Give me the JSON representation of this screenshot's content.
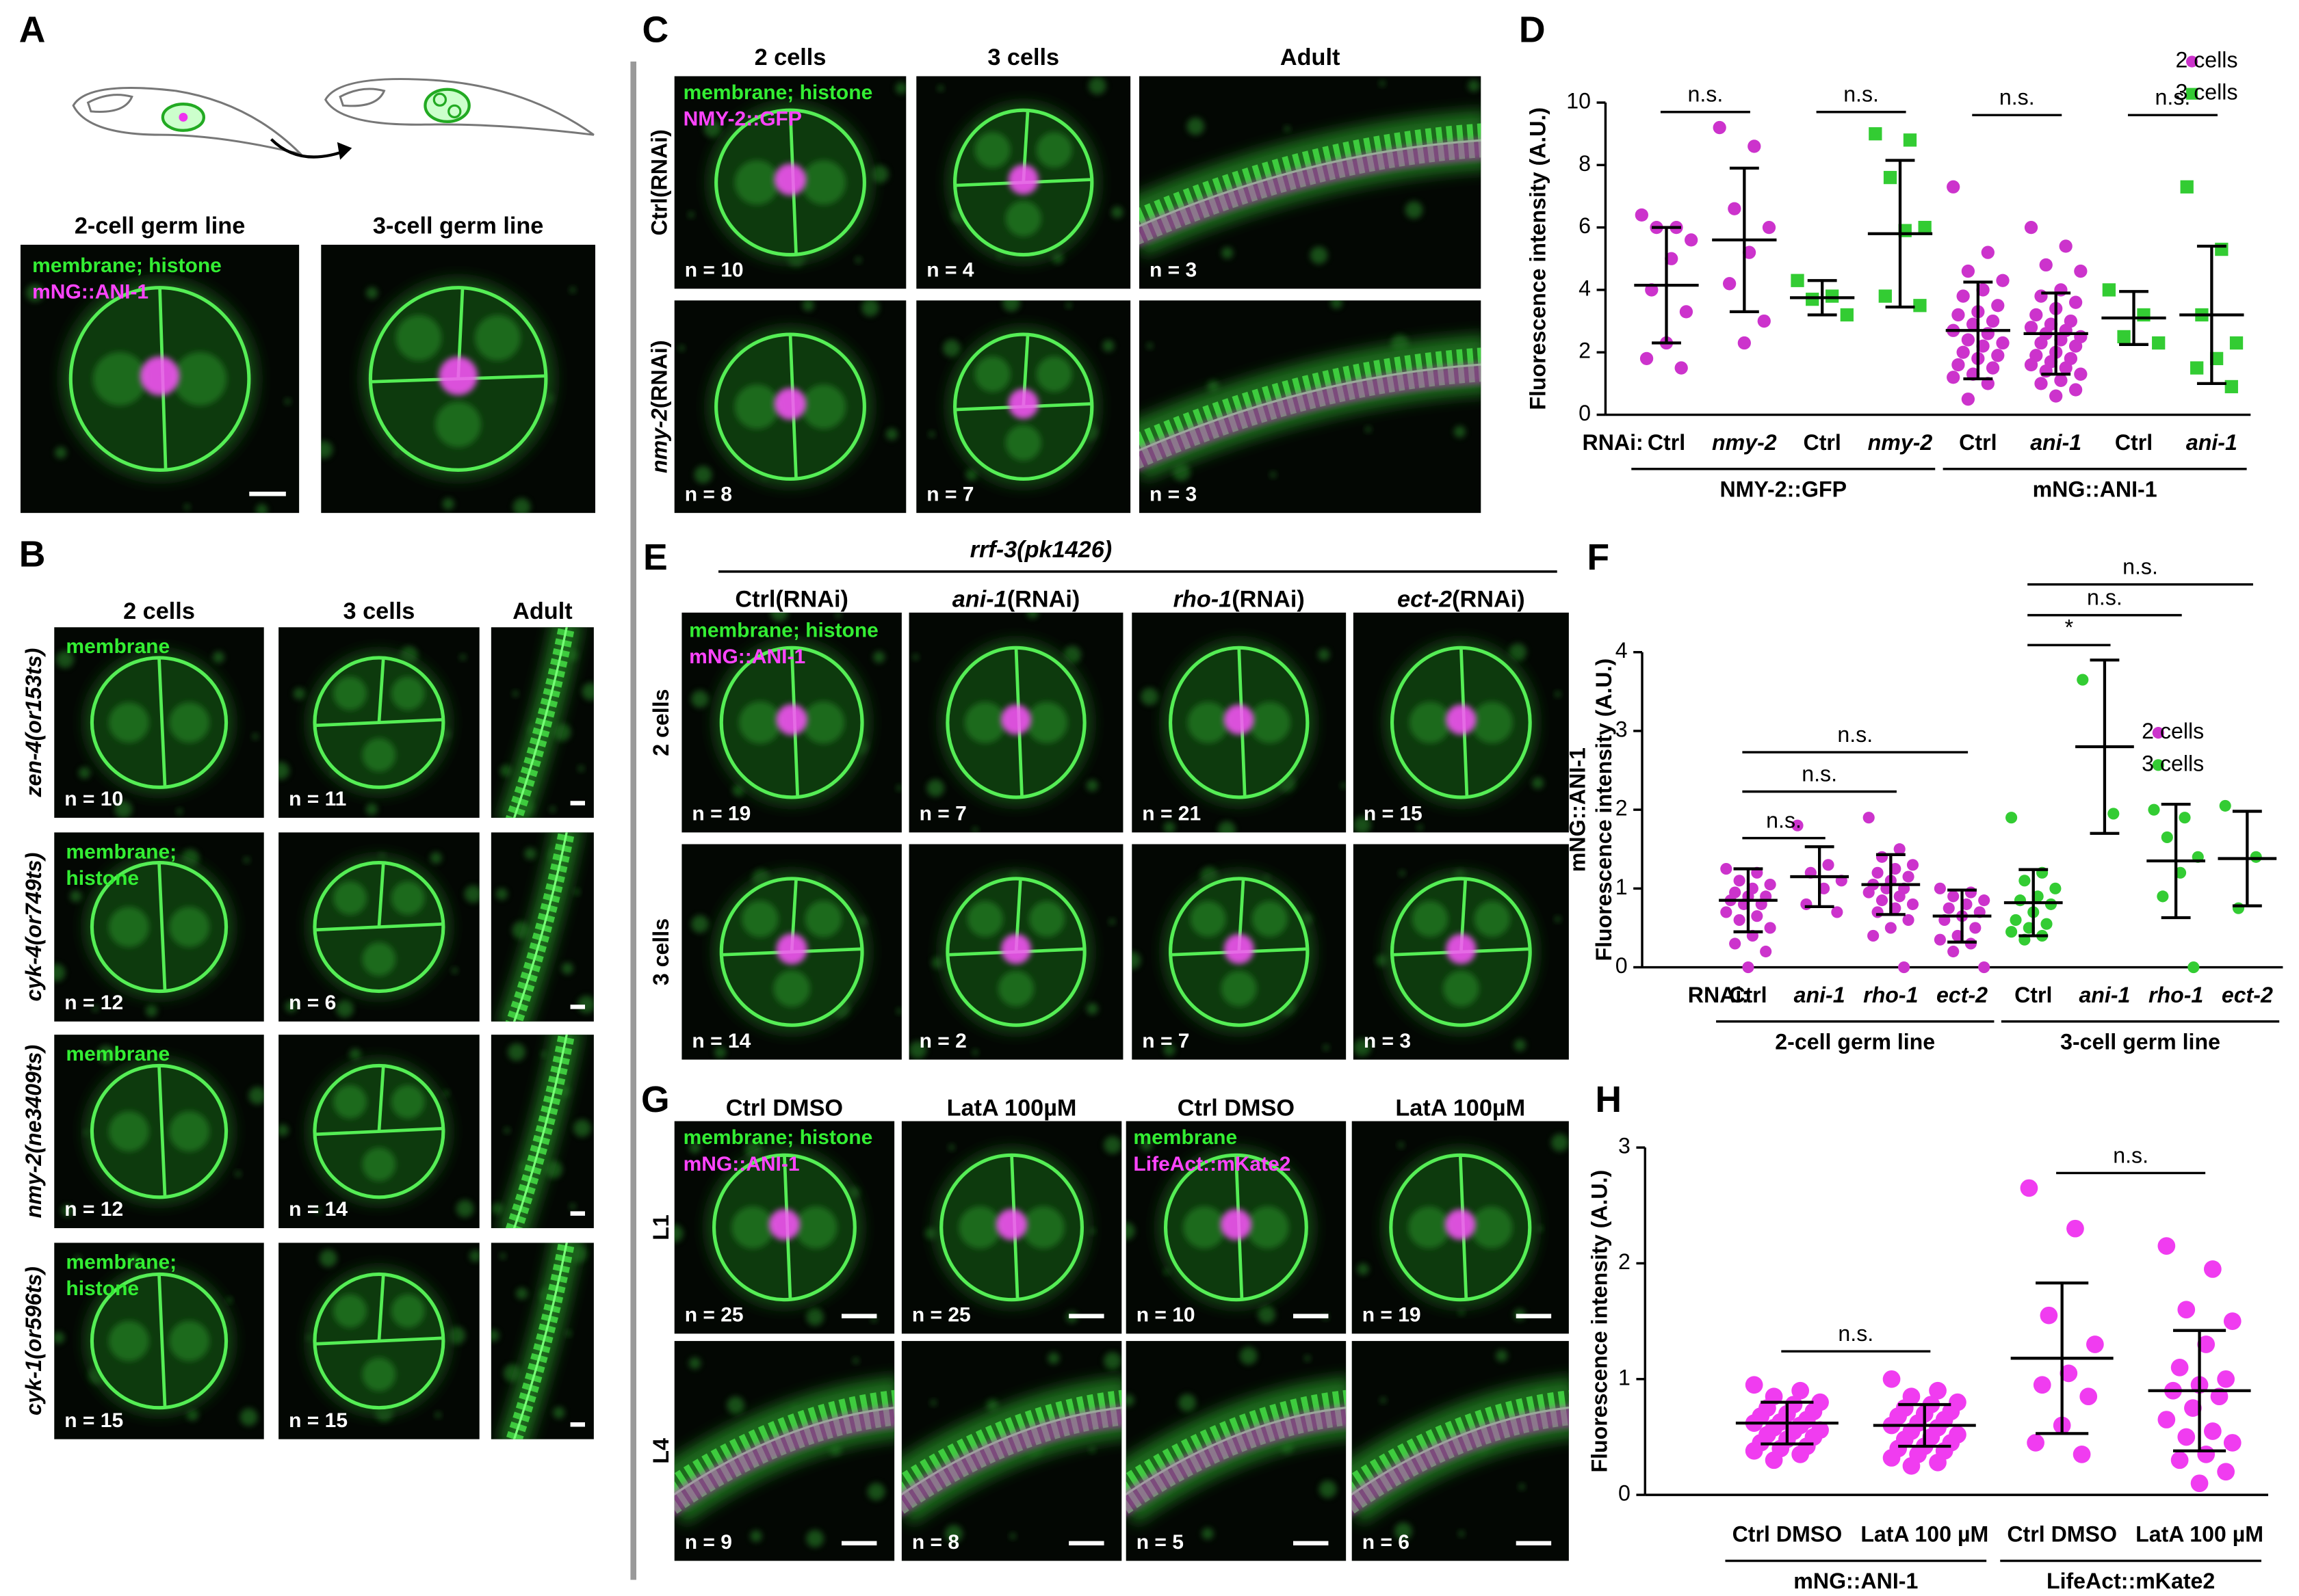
{
  "panel_labels": [
    "A",
    "B",
    "C",
    "D",
    "E",
    "F",
    "G",
    "H"
  ],
  "A": {
    "col_titles": [
      "2-cell germ line",
      "3-cell germ line"
    ],
    "stain": [
      "membrane; histone",
      "mNG::ANI-1"
    ]
  },
  "B": {
    "col_titles": [
      "2 cells",
      "3 cells",
      "Adult"
    ],
    "rows": [
      {
        "label": "zen-4(or153ts)",
        "stain": [
          "membrane"
        ],
        "n": [
          "n = 10",
          "n = 11"
        ]
      },
      {
        "label": "cyk-4(or749ts)",
        "stain": [
          "membrane;",
          "histone"
        ],
        "n": [
          "n = 12",
          "n = 6"
        ]
      },
      {
        "label": "nmy-2(ne3409ts)",
        "stain": [
          "membrane"
        ],
        "n": [
          "n = 12",
          "n = 14"
        ]
      },
      {
        "label": "cyk-1(or596ts)",
        "stain": [
          "membrane;",
          "histone"
        ],
        "n": [
          "n = 15",
          "n = 15"
        ]
      }
    ]
  },
  "C": {
    "col_titles": [
      "2 cells",
      "3 cells",
      "Adult"
    ],
    "stain": [
      "membrane; histone",
      "NMY-2::GFP"
    ],
    "rows": [
      {
        "label": [
          {
            "text": "Ctrl(RNAi)"
          }
        ],
        "n": [
          "n = 10",
          "n = 4",
          "n = 3"
        ]
      },
      {
        "label": [
          {
            "text": "nmy-2",
            "italic": true
          },
          {
            "text": "(RNAi)"
          }
        ],
        "n": [
          "n = 8",
          "n = 7",
          "n = 3"
        ]
      }
    ]
  },
  "E": {
    "strain": "rrf-3(pk1426)",
    "col_titles": [
      [
        {
          "text": "Ctrl(RNAi)"
        }
      ],
      [
        {
          "text": "ani-1",
          "italic": true
        },
        {
          "text": "(RNAi)"
        }
      ],
      [
        {
          "text": "rho-1",
          "italic": true
        },
        {
          "text": "(RNAi)"
        }
      ],
      [
        {
          "text": "ect-2",
          "italic": true
        },
        {
          "text": "(RNAi)"
        }
      ]
    ],
    "row_labels": [
      "2 cells",
      "3 cells"
    ],
    "stain": [
      "membrane; histone",
      "mNG::ANI-1"
    ],
    "n": [
      [
        "n = 19",
        "n = 7",
        "n = 21",
        "n = 15"
      ],
      [
        "n = 14",
        "n = 2",
        "n = 7",
        "n = 3"
      ]
    ]
  },
  "G": {
    "col_titles": [
      "Ctrl DMSO",
      "LatA 100µM",
      "Ctrl DMSO",
      "LatA 100µM"
    ],
    "row_labels": [
      "L1",
      "L4"
    ],
    "stain_left": [
      "membrane; histone",
      "mNG::ANI-1"
    ],
    "stain_right": [
      "membrane",
      "LifeAct::mKate2"
    ],
    "n": [
      [
        "n = 25",
        "n = 25",
        "n = 10",
        "n = 19"
      ],
      [
        "n = 9",
        "n = 8",
        "n = 5",
        "n = 6"
      ]
    ]
  },
  "chart_data": [
    {
      "type": "dot",
      "ylabel": "Fluorescence intensity (A.U.)",
      "xlabel": "RNAi:",
      "categories": [
        "Ctrl",
        "nmy-2",
        "Ctrl",
        "nmy-2",
        "Ctrl",
        "ani-1",
        "Ctrl",
        "ani-1"
      ],
      "italic": [
        false,
        true,
        false,
        true,
        false,
        true,
        false,
        true
      ],
      "groups": [
        {
          "label": "NMY-2::GFP",
          "from": 0,
          "to": 3
        },
        {
          "label": "mNG::ANI-1",
          "from": 4,
          "to": 7
        }
      ],
      "ylim": [
        0,
        10
      ],
      "yticks": [
        0,
        2,
        4,
        6,
        8,
        10
      ],
      "legend": "upper right",
      "series": [
        {
          "name": "2 cells",
          "color": "#cc33cc",
          "marker": "circle",
          "values": [
            [
              6.4,
              6.0,
              6.0,
              5.6,
              5.0,
              4.0,
              3.3,
              2.3,
              1.8,
              1.5
            ],
            [
              9.2,
              8.6,
              6.6,
              6.0,
              5.2,
              4.2,
              3.0,
              2.3
            ],
            null,
            null,
            [
              7.3,
              5.2,
              4.6,
              4.3,
              4.0,
              3.8,
              3.5,
              3.3,
              3.2,
              3.0,
              2.9,
              2.7,
              2.6,
              2.4,
              2.3,
              2.2,
              2.0,
              1.9,
              1.8,
              1.6,
              1.5,
              1.3,
              1.2,
              1.0,
              0.5
            ],
            [
              6.0,
              5.4,
              4.8,
              4.6,
              4.0,
              3.8,
              3.6,
              3.4,
              3.2,
              3.0,
              2.9,
              2.8,
              2.7,
              2.6,
              2.5,
              2.4,
              2.3,
              2.2,
              2.0,
              1.9,
              1.8,
              1.7,
              1.6,
              1.5,
              1.4,
              1.3,
              1.1,
              1.0,
              0.8,
              0.6
            ],
            null,
            null
          ],
          "means": [
            4.15,
            5.6,
            null,
            null,
            2.7,
            2.6,
            null,
            null
          ],
          "sd": [
            1.85,
            2.3,
            null,
            null,
            1.55,
            1.3,
            null,
            null
          ]
        },
        {
          "name": "3 cells",
          "color": "#33cc33",
          "marker": "square",
          "values": [
            null,
            null,
            [
              4.3,
              3.8,
              3.7,
              3.2
            ],
            [
              9.0,
              8.8,
              7.6,
              6.0,
              5.9,
              3.8,
              3.5
            ],
            null,
            null,
            [
              4.0,
              3.2,
              2.5,
              2.3
            ],
            [
              7.3,
              5.3,
              3.2,
              2.3,
              1.8,
              1.5,
              0.9
            ]
          ],
          "means": [
            null,
            null,
            3.75,
            5.8,
            null,
            null,
            3.1,
            3.2
          ],
          "sd": [
            null,
            null,
            0.55,
            2.35,
            null,
            null,
            0.85,
            2.2
          ]
        }
      ],
      "annotations": [
        {
          "from": 0,
          "to": 1,
          "y": 9.7,
          "label": "n.s."
        },
        {
          "from": 2,
          "to": 3,
          "y": 9.7,
          "label": "n.s."
        },
        {
          "from": 4,
          "to": 5,
          "y": 9.6,
          "label": "n.s."
        },
        {
          "from": 6,
          "to": 7,
          "y": 9.6,
          "label": "n.s."
        }
      ]
    },
    {
      "type": "dot",
      "ylabel": [
        "mNG::ANI-1",
        "Fluorescence intensity (A.U.)"
      ],
      "xlabel": "RNAi:",
      "categories": [
        "Ctrl",
        "ani-1",
        "rho-1",
        "ect-2",
        "Ctrl",
        "ani-1",
        "rho-1",
        "ect-2"
      ],
      "italic": [
        false,
        true,
        true,
        true,
        false,
        true,
        true,
        true
      ],
      "groups": [
        {
          "label": "2-cell germ line",
          "from": 0,
          "to": 3
        },
        {
          "label": "3-cell germ line",
          "from": 4,
          "to": 7
        }
      ],
      "ylim": [
        0,
        4
      ],
      "yticks": [
        0,
        1,
        2,
        3,
        4
      ],
      "legend": "right",
      "series": [
        {
          "name": "2 cells",
          "color": "#cc33cc",
          "marker": "circle",
          "values": [
            [
              1.25,
              1.2,
              1.1,
              1.05,
              1.0,
              0.95,
              0.9,
              0.9,
              0.85,
              0.8,
              0.8,
              0.7,
              0.65,
              0.6,
              0.5,
              0.4,
              0.3,
              0.2,
              0.0
            ],
            [
              1.8,
              1.3,
              1.2,
              1.1,
              1.0,
              0.8,
              0.7
            ],
            [
              1.9,
              1.5,
              1.4,
              1.3,
              1.25,
              1.2,
              1.15,
              1.1,
              1.05,
              1.0,
              1.0,
              0.95,
              0.9,
              0.85,
              0.8,
              0.75,
              0.7,
              0.6,
              0.5,
              0.4,
              0.0
            ],
            [
              1.0,
              0.95,
              0.9,
              0.85,
              0.8,
              0.75,
              0.7,
              0.65,
              0.6,
              0.5,
              0.4,
              0.35,
              0.3,
              0.2,
              0.0
            ],
            null,
            null,
            null,
            null
          ],
          "means": [
            0.85,
            1.15,
            1.05,
            0.65,
            null,
            null,
            null,
            null
          ],
          "sd": [
            0.4,
            0.38,
            0.38,
            0.33,
            null,
            null,
            null,
            null
          ]
        },
        {
          "name": "3 cells",
          "color": "#33cc33",
          "marker": "circle",
          "values": [
            null,
            null,
            null,
            null,
            [
              1.9,
              1.2,
              1.1,
              1.0,
              0.9,
              0.85,
              0.8,
              0.7,
              0.6,
              0.55,
              0.5,
              0.45,
              0.4,
              0.35
            ],
            [
              3.65,
              1.95
            ],
            [
              2.0,
              1.9,
              1.65,
              1.4,
              1.2,
              0.9,
              0.0
            ],
            [
              2.05,
              1.4,
              0.75
            ]
          ],
          "means": [
            null,
            null,
            null,
            null,
            0.82,
            2.8,
            1.35,
            1.38
          ],
          "sd": [
            null,
            null,
            null,
            null,
            0.42,
            1.1,
            0.72,
            0.6
          ]
        }
      ],
      "annotations": [
        {
          "from": 0,
          "to": 1,
          "y": 1.64,
          "label": "n.s."
        },
        {
          "from": 0,
          "to": 2,
          "y": 2.23,
          "label": "n.s."
        },
        {
          "from": 0,
          "to": 3,
          "y": 2.73,
          "label": "n.s."
        },
        {
          "from": 4,
          "to": 5,
          "y": 4.09,
          "label": "*"
        },
        {
          "from": 4,
          "to": 6,
          "y": 4.47,
          "label": "n.s."
        },
        {
          "from": 4,
          "to": 7,
          "y": 4.86,
          "label": "n.s."
        }
      ]
    },
    {
      "type": "dot",
      "ylabel": "Fluorescence intensity (A.U.)",
      "categories": [
        "Ctrl DMSO",
        "LatA 100 µM",
        "Ctrl DMSO",
        "LatA 100 µM"
      ],
      "italic": [
        false,
        false,
        false,
        false
      ],
      "groups": [
        {
          "label": "mNG::ANI-1",
          "from": 0,
          "to": 1
        },
        {
          "label": "LifeAct::mKate2",
          "from": 2,
          "to": 3
        }
      ],
      "ylim": [
        0,
        3
      ],
      "yticks": [
        0,
        1,
        2,
        3
      ],
      "series": [
        {
          "color": "#f03cf0",
          "marker": "circle",
          "values": [
            [
              0.95,
              0.9,
              0.85,
              0.8,
              0.78,
              0.75,
              0.72,
              0.7,
              0.68,
              0.65,
              0.63,
              0.62,
              0.6,
              0.58,
              0.56,
              0.55,
              0.52,
              0.5,
              0.48,
              0.45,
              0.42,
              0.4,
              0.38,
              0.35,
              0.3
            ],
            [
              1.0,
              0.9,
              0.85,
              0.8,
              0.78,
              0.75,
              0.72,
              0.7,
              0.68,
              0.65,
              0.62,
              0.6,
              0.58,
              0.55,
              0.52,
              0.5,
              0.48,
              0.45,
              0.42,
              0.4,
              0.38,
              0.35,
              0.32,
              0.28,
              0.25
            ],
            [
              2.65,
              2.3,
              1.55,
              1.3,
              1.05,
              0.95,
              0.85,
              0.6,
              0.45,
              0.35
            ],
            [
              2.15,
              1.95,
              1.6,
              1.5,
              1.3,
              1.1,
              1.0,
              0.95,
              0.9,
              0.85,
              0.75,
              0.65,
              0.55,
              0.5,
              0.45,
              0.35,
              0.3,
              0.2,
              0.1
            ]
          ],
          "means": [
            0.62,
            0.6,
            1.18,
            0.9
          ],
          "sd": [
            0.18,
            0.18,
            0.65,
            0.52
          ]
        }
      ],
      "annotations": [
        {
          "from": 0,
          "to": 1,
          "y": 1.24,
          "label": "n.s."
        },
        {
          "from": 2,
          "to": 3,
          "y": 2.78,
          "label": "n.s."
        }
      ]
    }
  ]
}
